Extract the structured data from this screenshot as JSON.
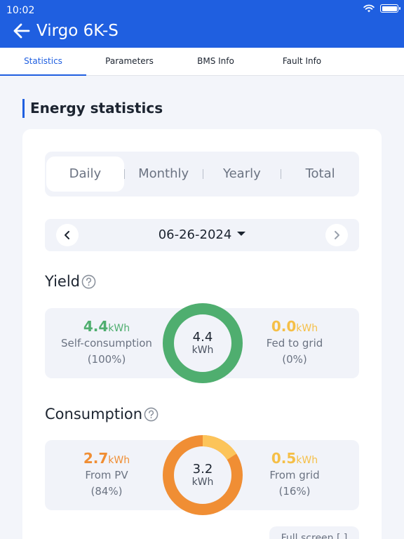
{
  "status": {
    "time": "10:02",
    "wifi_icon": "wifi-icon",
    "battery_icon": "battery-icon"
  },
  "header": {
    "title": "Virgo 6K-S",
    "back_icon": "arrow-left-icon"
  },
  "tabs": [
    {
      "label": "Statistics",
      "active": true
    },
    {
      "label": "Parameters",
      "active": false
    },
    {
      "label": "BMS Info",
      "active": false
    },
    {
      "label": "Fault Info",
      "active": false
    }
  ],
  "section": {
    "title": "Energy statistics"
  },
  "periods": [
    {
      "label": "Daily",
      "active": true
    },
    {
      "label": "Monthly",
      "active": false
    },
    {
      "label": "Yearly",
      "active": false
    },
    {
      "label": "Total",
      "active": false
    }
  ],
  "date": {
    "value": "06-26-2024"
  },
  "yield": {
    "title": "Yield",
    "total": "4.4",
    "unit": "kWh",
    "left": {
      "value": "4.4",
      "unit": "kWh",
      "label": "Self-consumption",
      "percent": "(100%)"
    },
    "right": {
      "value": "0.0",
      "unit": "kWh",
      "label": "Fed to grid",
      "percent": "(0%)"
    },
    "colors": {
      "self": "#4fae6f",
      "grid": "#f5bf47"
    },
    "share": {
      "self": 1.0,
      "grid": 0.0
    }
  },
  "consumption": {
    "title": "Consumption",
    "total": "3.2",
    "unit": "kWh",
    "left": {
      "value": "2.7",
      "unit": "kWh",
      "label": "From PV",
      "percent": "(84%)"
    },
    "right": {
      "value": "0.5",
      "unit": "kWh",
      "label": "From grid",
      "percent": "(16%)"
    },
    "colors": {
      "pv": "#f08e34",
      "grid": "#fcc45a"
    },
    "share": {
      "pv": 0.84,
      "grid": 0.16
    }
  },
  "footer": {
    "fullscreen_label": "Full screen [ ]"
  },
  "colors": {
    "brand": "#1f5fe0"
  }
}
